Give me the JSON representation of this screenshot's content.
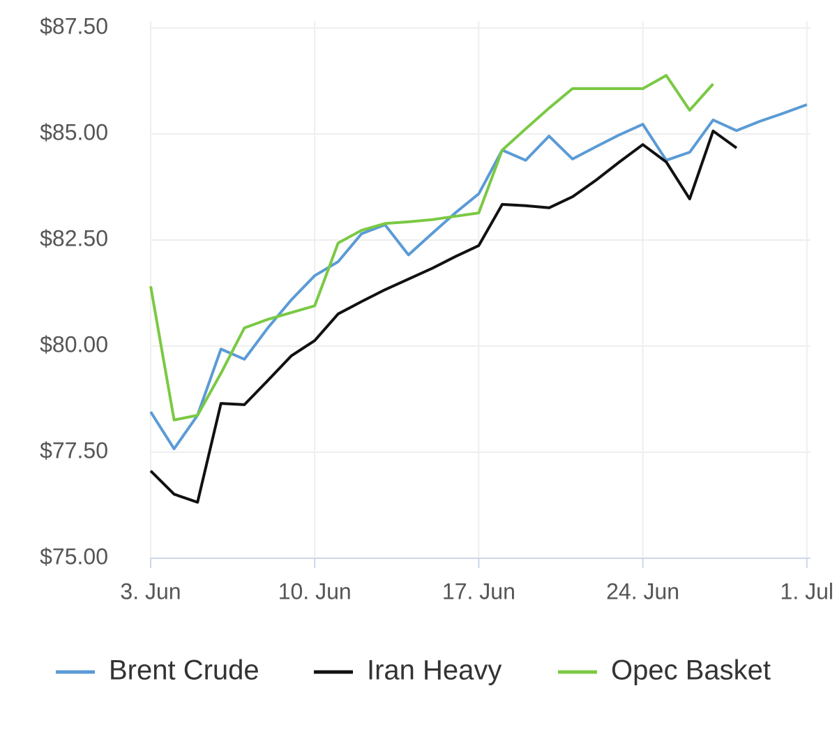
{
  "chart_data": {
    "type": "line",
    "categories": [
      "3. Jun",
      null,
      null,
      null,
      null,
      null,
      null,
      "10. Jun",
      null,
      null,
      null,
      null,
      null,
      null,
      "17. Jun",
      null,
      null,
      null,
      null,
      null,
      null,
      "24. Jun",
      null,
      null,
      null,
      null,
      null,
      null,
      "1. Jul"
    ],
    "series": [
      {
        "name": "Brent Crude",
        "color": "#5b9bd5",
        "values": [
          78.45,
          77.58,
          78.37,
          79.93,
          79.69,
          80.43,
          81.09,
          81.66,
          81.99,
          82.65,
          82.86,
          82.15,
          82.65,
          83.14,
          83.59,
          84.62,
          84.38,
          84.95,
          84.41,
          84.7,
          84.98,
          85.23,
          84.38,
          84.57,
          85.33,
          85.08,
          85.3,
          85.49,
          85.69
        ]
      },
      {
        "name": "Iran Heavy",
        "color": "#111111",
        "values": [
          77.06,
          76.51,
          76.32,
          78.65,
          78.62,
          79.19,
          79.77,
          80.13,
          80.76,
          81.05,
          81.33,
          81.58,
          81.83,
          82.11,
          82.37,
          83.34,
          83.31,
          83.26,
          83.52,
          83.91,
          84.34,
          84.75,
          84.34,
          83.47,
          85.07,
          84.67,
          null,
          null,
          null
        ]
      },
      {
        "name": "Opec Basket",
        "color": "#7ac943",
        "values": [
          81.41,
          78.26,
          78.37,
          79.36,
          80.43,
          80.63,
          80.79,
          80.95,
          82.43,
          82.73,
          82.89,
          82.93,
          82.98,
          83.06,
          83.14,
          84.62,
          85.12,
          85.61,
          86.07,
          86.07,
          86.07,
          86.07,
          86.38,
          85.56,
          86.18,
          null,
          null,
          null,
          null
        ]
      }
    ],
    "ylim": [
      75,
      87.5
    ],
    "yticks": [
      {
        "value": 75,
        "label": "$75.00"
      },
      {
        "value": 77.5,
        "label": "$77.50"
      },
      {
        "value": 80,
        "label": "$80.00"
      },
      {
        "value": 82.5,
        "label": "$82.50"
      },
      {
        "value": 85,
        "label": "$85.00"
      },
      {
        "value": 87.5,
        "label": "$87.50"
      }
    ],
    "grid": true,
    "legend": "bottom"
  }
}
